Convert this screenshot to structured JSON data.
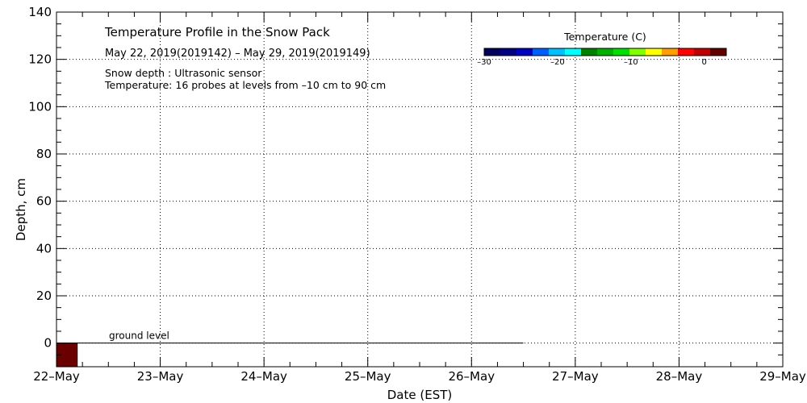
{
  "chart_data": {
    "type": "heatmap",
    "title": "Temperature Profile in the Snow Pack",
    "subtitle": "May 22, 2019(2019142) – May 29, 2019(2019149)",
    "notes": [
      "Snow depth : Ultrasonic sensor",
      "Temperature: 16 probes at levels from –10 cm to 90 cm"
    ],
    "xlabel": "Date (EST)",
    "ylabel": "Depth, cm",
    "x_ticks": [
      "22–May",
      "23–May",
      "24–May",
      "25–May",
      "26–May",
      "27–May",
      "28–May",
      "29–May"
    ],
    "x_range": [
      "2019-05-22",
      "2019-05-29"
    ],
    "y_ticks": [
      "0",
      "20",
      "40",
      "60",
      "80",
      "100",
      "120",
      "140"
    ],
    "ylim": [
      -10,
      140
    ],
    "grid": true,
    "ground_label": "ground level",
    "ground_line": {
      "y": 0,
      "x_start": "2019-05-22",
      "x_end": "2019-05-26 12:00"
    },
    "heat_cells": [
      {
        "x_start": "2019-05-22",
        "x_end": "2019-05-22 04:48",
        "y_start": -10,
        "y_end": 0,
        "color": "#6b0000"
      }
    ],
    "colorbar": {
      "label": "Temperature (C)",
      "range": [
        -30,
        3
      ],
      "tick_values": [
        -30,
        -20,
        -10,
        0
      ],
      "tick_labels": [
        "–30",
        "–20",
        "–10",
        "0"
      ],
      "colors": [
        "#00005a",
        "#000080",
        "#0000c0",
        "#0060ff",
        "#00c0ff",
        "#00ffff",
        "#008000",
        "#00b000",
        "#00e000",
        "#80ff00",
        "#ffff00",
        "#ffa000",
        "#ff0000",
        "#c00000",
        "#600000"
      ]
    }
  }
}
